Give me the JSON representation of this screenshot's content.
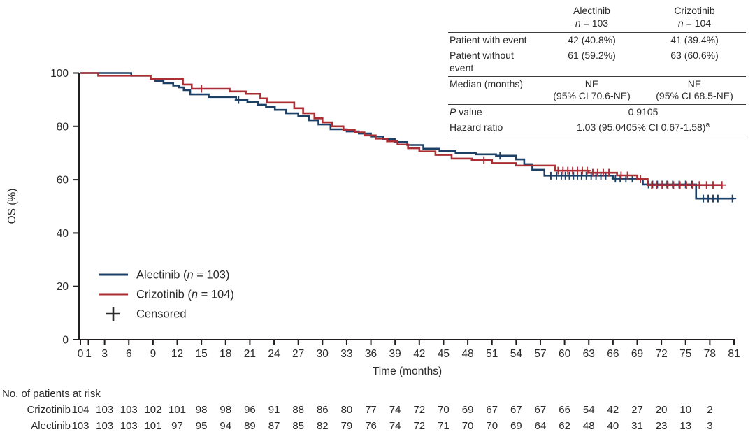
{
  "figure": {
    "background": "#ffffff",
    "text_color": "#2a2a2a",
    "axis_color": "#231f20"
  },
  "stats_table": {
    "n_symbol": "n",
    "p_italic": "P",
    "p_rest": " value",
    "columns": [
      {
        "name": "Alectinib",
        "n_eq": "= 103"
      },
      {
        "name": "Crizotinib",
        "n_eq": "= 104"
      }
    ],
    "rows": {
      "with_event": {
        "label": "Patient with event",
        "alectinib": "42 (40.8%)",
        "crizotinib": "41 (39.4%)"
      },
      "without_event": {
        "label": "Patient without event",
        "alectinib": "61 (59.2%)",
        "crizotinib": "63 (60.6%)"
      },
      "median": {
        "label": "Median (months)",
        "alectinib_l1": "NE",
        "alectinib_l2": "(95% CI 70.6-NE)",
        "crizotinib_l1": "NE",
        "crizotinib_l2": "(95% CI 68.5-NE)"
      },
      "p_value": {
        "value": "0.9105"
      },
      "hazard": {
        "label": "Hazard ratio",
        "value": "1.03 (95.0405% CI 0.67-1.58)",
        "sup": "a"
      }
    }
  },
  "chart_data": {
    "type": "line",
    "subtype": "kaplan-meier-step",
    "title": "",
    "xlabel": "Time (months)",
    "ylabel": "OS (%)",
    "xlim": [
      0,
      81
    ],
    "ylim": [
      0,
      100
    ],
    "grid": false,
    "legend_position": "inside-lower-left",
    "x_ticks": [
      0,
      1,
      3,
      6,
      9,
      12,
      15,
      18,
      21,
      24,
      27,
      30,
      33,
      36,
      39,
      42,
      45,
      48,
      51,
      54,
      57,
      60,
      63,
      66,
      69,
      72,
      75,
      78,
      81
    ],
    "y_ticks": [
      0,
      20,
      40,
      60,
      80,
      100
    ],
    "censored_legend": "Censored",
    "series": [
      {
        "id": "alectinib",
        "legend_prefix": "Alectinib (",
        "legend_n": "n",
        "legend_suffix": " = 103)",
        "color": "#1d4066",
        "end_time": 81,
        "points": [
          [
            0,
            100
          ],
          [
            6.3,
            99
          ],
          [
            8.7,
            97.8
          ],
          [
            9.3,
            97
          ],
          [
            10.3,
            96.2
          ],
          [
            11.5,
            95.3
          ],
          [
            12.2,
            94.6
          ],
          [
            12.8,
            93.6
          ],
          [
            13.6,
            92
          ],
          [
            15.9,
            91
          ],
          [
            19.3,
            89.9
          ],
          [
            20.7,
            89.2
          ],
          [
            22,
            88.1
          ],
          [
            23,
            87.2
          ],
          [
            24.1,
            86.2
          ],
          [
            25.5,
            84.9
          ],
          [
            27,
            83.9
          ],
          [
            28.3,
            82.3
          ],
          [
            29.5,
            80.7
          ],
          [
            31,
            78.9
          ],
          [
            33,
            78.1
          ],
          [
            34.5,
            77.3
          ],
          [
            36,
            76.2
          ],
          [
            37.5,
            75.2
          ],
          [
            39,
            74.1
          ],
          [
            40.5,
            73
          ],
          [
            42.5,
            71.6
          ],
          [
            44.5,
            70.7
          ],
          [
            46.5,
            70
          ],
          [
            49,
            69.5
          ],
          [
            51.5,
            69
          ],
          [
            54,
            67.6
          ],
          [
            55,
            65.8
          ],
          [
            56,
            63.7
          ],
          [
            57.5,
            61.5
          ],
          [
            66,
            60.4
          ],
          [
            69.7,
            58.2
          ],
          [
            76.3,
            52.9
          ]
        ],
        "censors": [
          [
            19.6,
            89.9
          ],
          [
            52,
            69
          ],
          [
            58.3,
            61.5
          ],
          [
            59,
            61.5
          ],
          [
            59.6,
            61.5
          ],
          [
            60.1,
            61.5
          ],
          [
            60.6,
            61.5
          ],
          [
            61.1,
            61.5
          ],
          [
            61.6,
            61.5
          ],
          [
            62.1,
            61.5
          ],
          [
            62.7,
            61.5
          ],
          [
            63.3,
            61.5
          ],
          [
            63.9,
            61.5
          ],
          [
            64.5,
            61.5
          ],
          [
            65.1,
            61.5
          ],
          [
            66.3,
            60.4
          ],
          [
            66.9,
            60.4
          ],
          [
            67.6,
            60.4
          ],
          [
            68.4,
            60.4
          ],
          [
            70.4,
            58.2
          ],
          [
            70.9,
            58.2
          ],
          [
            71.5,
            58.2
          ],
          [
            72.1,
            58.2
          ],
          [
            72.7,
            58.2
          ],
          [
            73.4,
            58.2
          ],
          [
            74.2,
            58.2
          ],
          [
            75,
            58.2
          ],
          [
            75.8,
            58.2
          ],
          [
            77.2,
            52.9
          ],
          [
            77.8,
            52.9
          ],
          [
            78.4,
            52.9
          ],
          [
            79,
            52.9
          ],
          [
            80.8,
            52.9
          ]
        ]
      },
      {
        "id": "crizotinib",
        "legend_prefix": "Crizotinib (",
        "legend_n": "n",
        "legend_suffix": " = 104)",
        "color": "#ab2e35",
        "end_time": 79.5,
        "points": [
          [
            0,
            100
          ],
          [
            2.2,
            99
          ],
          [
            8.7,
            97.8
          ],
          [
            12.7,
            95.7
          ],
          [
            13.8,
            94.1
          ],
          [
            18.5,
            93.1
          ],
          [
            20.5,
            92.2
          ],
          [
            22.3,
            90.5
          ],
          [
            23.1,
            88.9
          ],
          [
            26.5,
            86.8
          ],
          [
            27.6,
            84.9
          ],
          [
            29,
            83
          ],
          [
            30,
            81.5
          ],
          [
            31.2,
            80
          ],
          [
            32.6,
            78.7
          ],
          [
            34,
            77.7
          ],
          [
            35.2,
            76.6
          ],
          [
            36.6,
            75.4
          ],
          [
            38,
            74.4
          ],
          [
            39.3,
            73.2
          ],
          [
            40.6,
            71.8
          ],
          [
            42,
            70.6
          ],
          [
            44,
            69.3
          ],
          [
            46,
            67.9
          ],
          [
            48.5,
            67.3
          ],
          [
            51,
            66.2
          ],
          [
            54,
            65.3
          ],
          [
            58.8,
            63.4
          ],
          [
            63,
            62.6
          ],
          [
            66.5,
            61.6
          ],
          [
            69,
            60.2
          ],
          [
            70.3,
            58
          ]
        ],
        "censors": [
          [
            15,
            94.1
          ],
          [
            50,
            67.3
          ],
          [
            59.2,
            63.4
          ],
          [
            59.8,
            63.4
          ],
          [
            60.4,
            63.4
          ],
          [
            61,
            63.4
          ],
          [
            61.6,
            63.4
          ],
          [
            62.2,
            63.4
          ],
          [
            62.8,
            63.4
          ],
          [
            63.5,
            62.6
          ],
          [
            64.1,
            62.6
          ],
          [
            64.8,
            62.6
          ],
          [
            65.5,
            62.6
          ],
          [
            67,
            61.6
          ],
          [
            67.8,
            61.6
          ],
          [
            69.4,
            60.2
          ],
          [
            70.8,
            58
          ],
          [
            71.4,
            58
          ],
          [
            72.1,
            58
          ],
          [
            72.8,
            58
          ],
          [
            73.5,
            58
          ],
          [
            74.3,
            58
          ],
          [
            75.1,
            58
          ],
          [
            75.9,
            58
          ],
          [
            76.7,
            58
          ],
          [
            77.6,
            58
          ],
          [
            78.4,
            58
          ],
          [
            79.5,
            58
          ]
        ]
      }
    ],
    "risk_table": {
      "title": "No. of patients at risk",
      "times": [
        0,
        3,
        6,
        9,
        12,
        15,
        18,
        21,
        24,
        27,
        30,
        33,
        36,
        39,
        42,
        45,
        48,
        51,
        54,
        57,
        60,
        63,
        66,
        69,
        72,
        75,
        78
      ],
      "rows": [
        {
          "label": "Crizotinib",
          "values": [
            104,
            103,
            103,
            102,
            101,
            98,
            98,
            96,
            91,
            88,
            86,
            80,
            77,
            74,
            72,
            70,
            69,
            67,
            67,
            67,
            66,
            54,
            42,
            27,
            20,
            10,
            2
          ]
        },
        {
          "label": "Alectinib",
          "values": [
            103,
            103,
            103,
            101,
            97,
            95,
            94,
            89,
            87,
            85,
            82,
            79,
            76,
            74,
            72,
            71,
            70,
            70,
            69,
            64,
            62,
            48,
            40,
            31,
            23,
            13,
            3
          ]
        }
      ]
    }
  }
}
